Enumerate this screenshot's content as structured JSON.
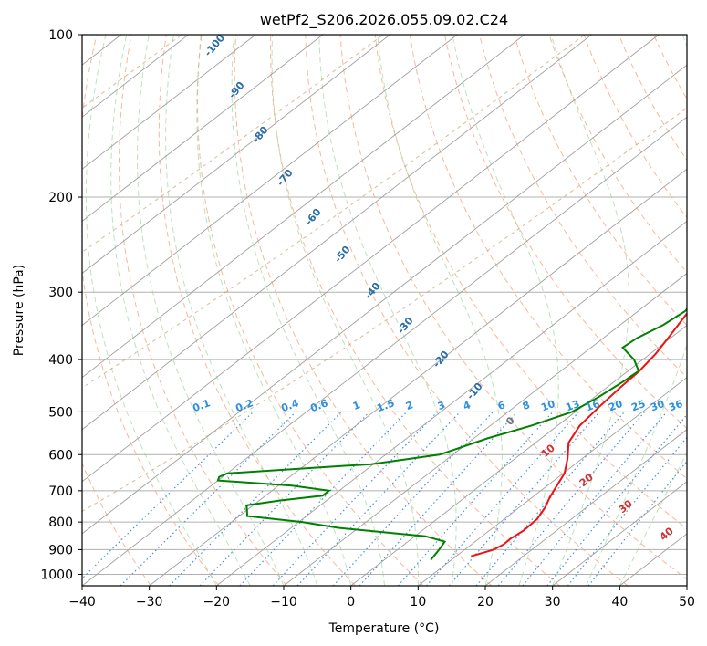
{
  "chart_data": {
    "type": "line",
    "title": "wetPf2_S206.2026.055.09.02.C24",
    "xlabel": "Temperature (°C)",
    "ylabel": "Pressure (hPa)",
    "xlim": [
      -40,
      50
    ],
    "ylim": [
      1050,
      100
    ],
    "x_ticks": [
      -40,
      -30,
      -20,
      -10,
      0,
      10,
      20,
      30,
      40,
      50
    ],
    "x_tick_labels": [
      "−40",
      "−30",
      "−20",
      "−10",
      "0",
      "10",
      "20",
      "30",
      "40",
      "50"
    ],
    "y_ticks": [
      100,
      200,
      300,
      400,
      500,
      600,
      700,
      800,
      900,
      1000
    ],
    "y_tick_labels": [
      "100",
      "200",
      "300",
      "400",
      "500",
      "600",
      "700",
      "800",
      "900",
      "1000"
    ],
    "series": [
      {
        "name": "temperature",
        "color": "#ee1111",
        "points": [
          [
            926,
            12.2
          ],
          [
            900,
            14.3
          ],
          [
            880,
            14.8
          ],
          [
            860,
            14.7
          ],
          [
            830,
            15.1
          ],
          [
            790,
            14.9
          ],
          [
            750,
            13.8
          ],
          [
            720,
            12.6
          ],
          [
            690,
            11.6
          ],
          [
            650,
            10.2
          ],
          [
            610,
            7.8
          ],
          [
            570,
            4.9
          ],
          [
            530,
            3.3
          ],
          [
            490,
            2.6
          ],
          [
            450,
            2.0
          ],
          [
            420,
            1.7
          ],
          [
            390,
            0.8
          ],
          [
            360,
            -0.6
          ],
          [
            330,
            -2.2
          ],
          [
            300,
            -3.5
          ],
          [
            270,
            -4.4
          ],
          [
            245,
            -5.6
          ],
          [
            220,
            -7.1
          ],
          [
            200,
            -9.2
          ],
          [
            185,
            -9.4
          ],
          [
            170,
            -6.5
          ],
          [
            155,
            -1.8
          ],
          [
            140,
            1.3
          ],
          [
            125,
            4.2
          ],
          [
            110,
            6.1
          ],
          [
            100,
            7.1
          ]
        ]
      },
      {
        "name": "dewpoint",
        "color": "#008000",
        "points": [
          [
            940,
            6.9
          ],
          [
            905,
            6.3
          ],
          [
            870,
            5.5
          ],
          [
            850,
            1.6
          ],
          [
            820,
            -13.0
          ],
          [
            800,
            -19.5
          ],
          [
            780,
            -28.8
          ],
          [
            760,
            -30.0
          ],
          [
            745,
            -31.0
          ],
          [
            730,
            -27.0
          ],
          [
            715,
            -21.5
          ],
          [
            700,
            -21.5
          ],
          [
            685,
            -28.0
          ],
          [
            670,
            -40.0
          ],
          [
            660,
            -40.5
          ],
          [
            650,
            -40.0
          ],
          [
            625,
            -20.3
          ],
          [
            600,
            -12.0
          ],
          [
            560,
            -8.0
          ],
          [
            530,
            -3.9
          ],
          [
            500,
            -0.5
          ],
          [
            470,
            0.6
          ],
          [
            440,
            1.3
          ],
          [
            420,
            1.6
          ],
          [
            400,
            -1.3
          ],
          [
            380,
            -5.3
          ],
          [
            365,
            -5.0
          ],
          [
            345,
            -3.6
          ],
          [
            325,
            -3.0
          ],
          [
            300,
            -4.6
          ],
          [
            270,
            -7.4
          ],
          [
            245,
            -9.4
          ],
          [
            225,
            -10.1
          ],
          [
            210,
            -10.0
          ],
          [
            195,
            -7.3
          ],
          [
            180,
            -6.9
          ],
          [
            165,
            -8.9
          ],
          [
            150,
            -9.7
          ],
          [
            135,
            -9.0
          ],
          [
            120,
            -5.4
          ],
          [
            110,
            -1.1
          ],
          [
            100,
            3.0
          ]
        ]
      }
    ],
    "dry_adiabat_labels": [
      "-100",
      "-90",
      "-80",
      "-70",
      "-60",
      "-50",
      "-40",
      "-30",
      "-20",
      "-10",
      "0",
      "10",
      "20",
      "30",
      "40"
    ],
    "mixing_ratio_labels": [
      "0.1",
      "0.2",
      "0.4",
      "0.6",
      "1",
      "1.5",
      "2",
      "3",
      "4",
      "6",
      "8",
      "10",
      "13",
      "16",
      "20",
      "25",
      "30",
      "36"
    ]
  }
}
